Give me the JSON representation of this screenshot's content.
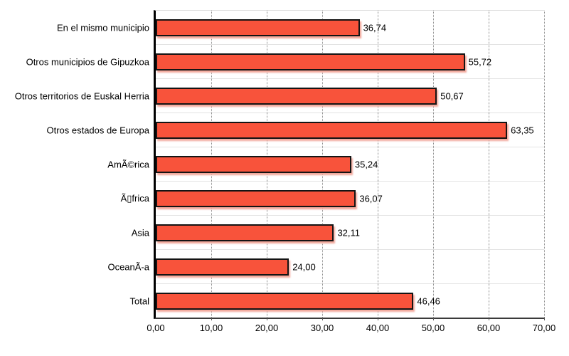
{
  "chart_data": {
    "type": "bar",
    "orientation": "horizontal",
    "title": "",
    "xlabel": "",
    "ylabel": "",
    "categories": [
      "En el mismo municipio",
      "Otros municipios de Gipuzkoa",
      "Otros territorios de Euskal Herria",
      "Otros estados de Europa",
      "AmÃ©rica",
      "Ã▯frica",
      "Asia",
      "OceanÃ-a",
      "Total"
    ],
    "values": [
      36.74,
      55.72,
      50.67,
      63.35,
      35.24,
      36.07,
      32.11,
      24.0,
      46.46
    ],
    "value_labels": [
      "36,74",
      "55,72",
      "50,67",
      "63,35",
      "35,24",
      "36,07",
      "32,11",
      "24,00",
      "46,46"
    ],
    "x_ticks": [
      "0,00",
      "10,00",
      "20,00",
      "30,00",
      "40,00",
      "50,00",
      "60,00",
      "70,00"
    ],
    "x_tick_values": [
      0,
      10,
      20,
      30,
      40,
      50,
      60,
      70
    ],
    "xlim": [
      0,
      70
    ],
    "grid": "vertical-dotted",
    "legend": "none",
    "colors": {
      "bar_fill": "#f8533b",
      "bar_border": "#141414",
      "bar_shadow": "#f2a89c",
      "grid_line": "#8a8a8a",
      "row_separator": "#e3e3e3",
      "plot_top_border": "#dcdcdc",
      "x_axis_line": "#3a3a3a",
      "y_axis_line": "#000000",
      "background": "#ffffff",
      "text": "#000000"
    }
  }
}
